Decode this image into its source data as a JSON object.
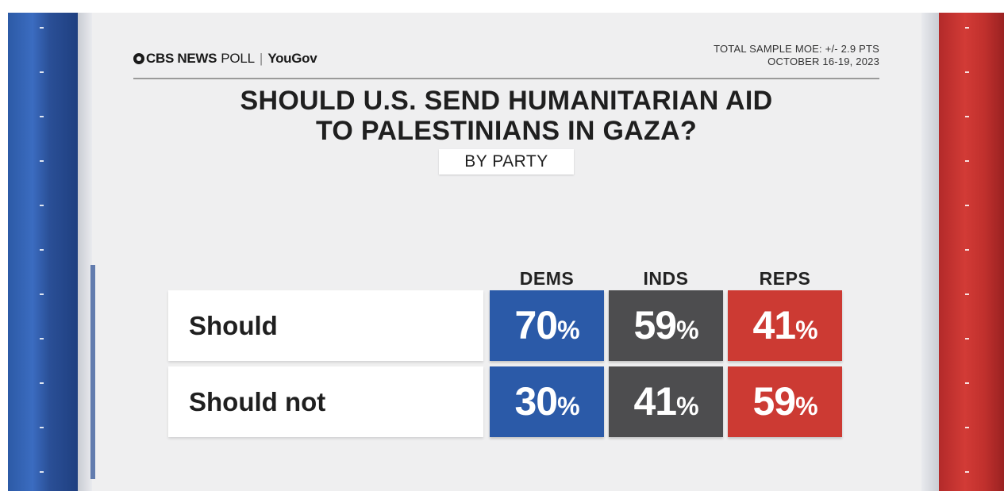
{
  "header": {
    "brand": "CBS NEWS",
    "poll": "POLL",
    "separator": "|",
    "partner": "YouGov",
    "moe_line1": "TOTAL SAMPLE MOE: +/- 2.9 PTS",
    "moe_line2": "OCTOBER 16-19, 2023"
  },
  "colors": {
    "dems": "#2b5aa8",
    "inds": "#4d4d4f",
    "reps": "#cc3a33"
  },
  "chart_data": {
    "type": "table",
    "title_line1": "SHOULD U.S. SEND HUMANITARIAN AID",
    "title_line2": "TO PALESTINIANS IN GAZA?",
    "subtitle": "BY PARTY",
    "columns": [
      "DEMS",
      "INDS",
      "REPS"
    ],
    "rows": [
      {
        "label": "Should",
        "values": [
          70,
          59,
          41
        ]
      },
      {
        "label": "Should not",
        "values": [
          30,
          41,
          59
        ]
      }
    ],
    "unit": "%"
  }
}
